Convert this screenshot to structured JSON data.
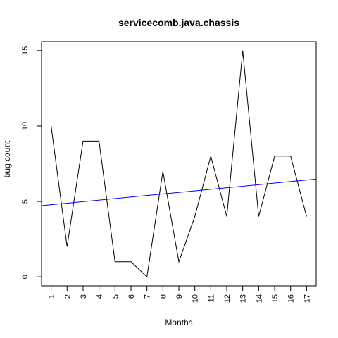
{
  "chart_data": {
    "type": "line",
    "title": "servicecomb.java.chassis",
    "xlabel": "Months",
    "ylabel": "bug count",
    "x": [
      1,
      2,
      3,
      4,
      5,
      6,
      7,
      8,
      9,
      10,
      11,
      12,
      13,
      14,
      15,
      16,
      17
    ],
    "x_tick_labels": [
      "1",
      "2",
      "3",
      "4",
      "5",
      "6",
      "7",
      "8",
      "9",
      "10",
      "11",
      "12",
      "13",
      "14",
      "15",
      "16",
      "17"
    ],
    "y_ticks": [
      0,
      5,
      10,
      15
    ],
    "y_tick_labels": [
      "0",
      "5",
      "10",
      "15"
    ],
    "xlim": [
      0.4,
      17.6
    ],
    "ylim": [
      -0.6,
      15.6
    ],
    "grid": false,
    "series": [
      {
        "color": "#000000",
        "values": [
          10,
          2,
          9,
          9,
          1,
          1,
          0,
          7,
          1,
          4,
          8,
          4,
          15,
          4,
          8,
          8,
          4
        ]
      }
    ],
    "trend_line": {
      "color": "#0000ff",
      "y_at_xmin": 4.72,
      "y_at_xmax": 6.48
    }
  }
}
